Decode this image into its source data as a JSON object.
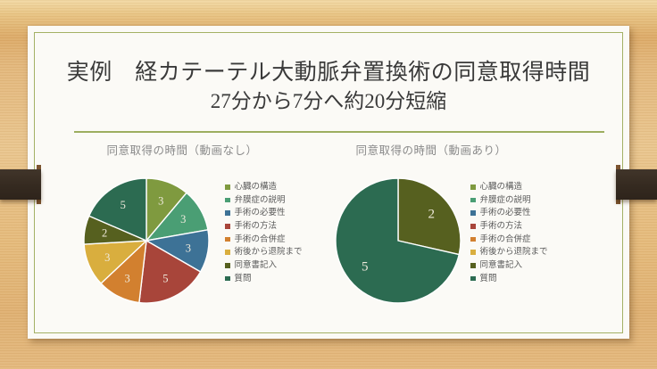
{
  "slide": {
    "title_line1": "実例　経カテーテル大動脈弁置換術の同意取得時間",
    "title_line2": "27分から7分へ約20分短縮"
  },
  "theme": {
    "wood_background": "#e4b87c",
    "ribbon_brown": "#352a20",
    "ribbon_fold_brown": "#7c5430",
    "slide_background": "#fbfaf6",
    "inner_border_olive": "#a4b165",
    "divider_olive": "#9dae5f",
    "title_color": "#3a3a3a",
    "chart_title_color": "#8a8a8a",
    "legend_text_color": "#595959",
    "pie_number_color": "#eee9db"
  },
  "chart_data": [
    {
      "type": "pie",
      "title": "同意取得の時間（動画なし）",
      "total_minutes": 27,
      "labels": [
        "心臓の構造",
        "弁膜症の説明",
        "手術の必要性",
        "手術の方法",
        "手術の合併症",
        "術後から退院まで",
        "同意書記入",
        "質問"
      ],
      "values": [
        3,
        3,
        3,
        5,
        3,
        3,
        2,
        5
      ],
      "colors": [
        "#7f9a3f",
        "#4a9e74",
        "#3d7296",
        "#a8453a",
        "#d2802f",
        "#d9ae3e",
        "#56601f",
        "#2c6b51"
      ],
      "legend_position": "right",
      "start_angle_deg": 0,
      "direction": "clockwise",
      "label_font_size": 12.5
    },
    {
      "type": "pie",
      "title": "同意取得の時間（動画あり）",
      "total_minutes": 7,
      "labels": [
        "心臓の構造",
        "弁膜症の説明",
        "手術の必要性",
        "手術の方法",
        "手術の合併症",
        "術後から退院まで",
        "同意書記入",
        "質問"
      ],
      "values": [
        0,
        0,
        0,
        0,
        0,
        0,
        2,
        5
      ],
      "colors": [
        "#7f9a3f",
        "#4a9e74",
        "#3d7296",
        "#a8453a",
        "#d2802f",
        "#d9ae3e",
        "#56601f",
        "#2c6b51"
      ],
      "legend_position": "right",
      "start_angle_deg": 0,
      "direction": "clockwise",
      "label_font_size": 15
    }
  ]
}
